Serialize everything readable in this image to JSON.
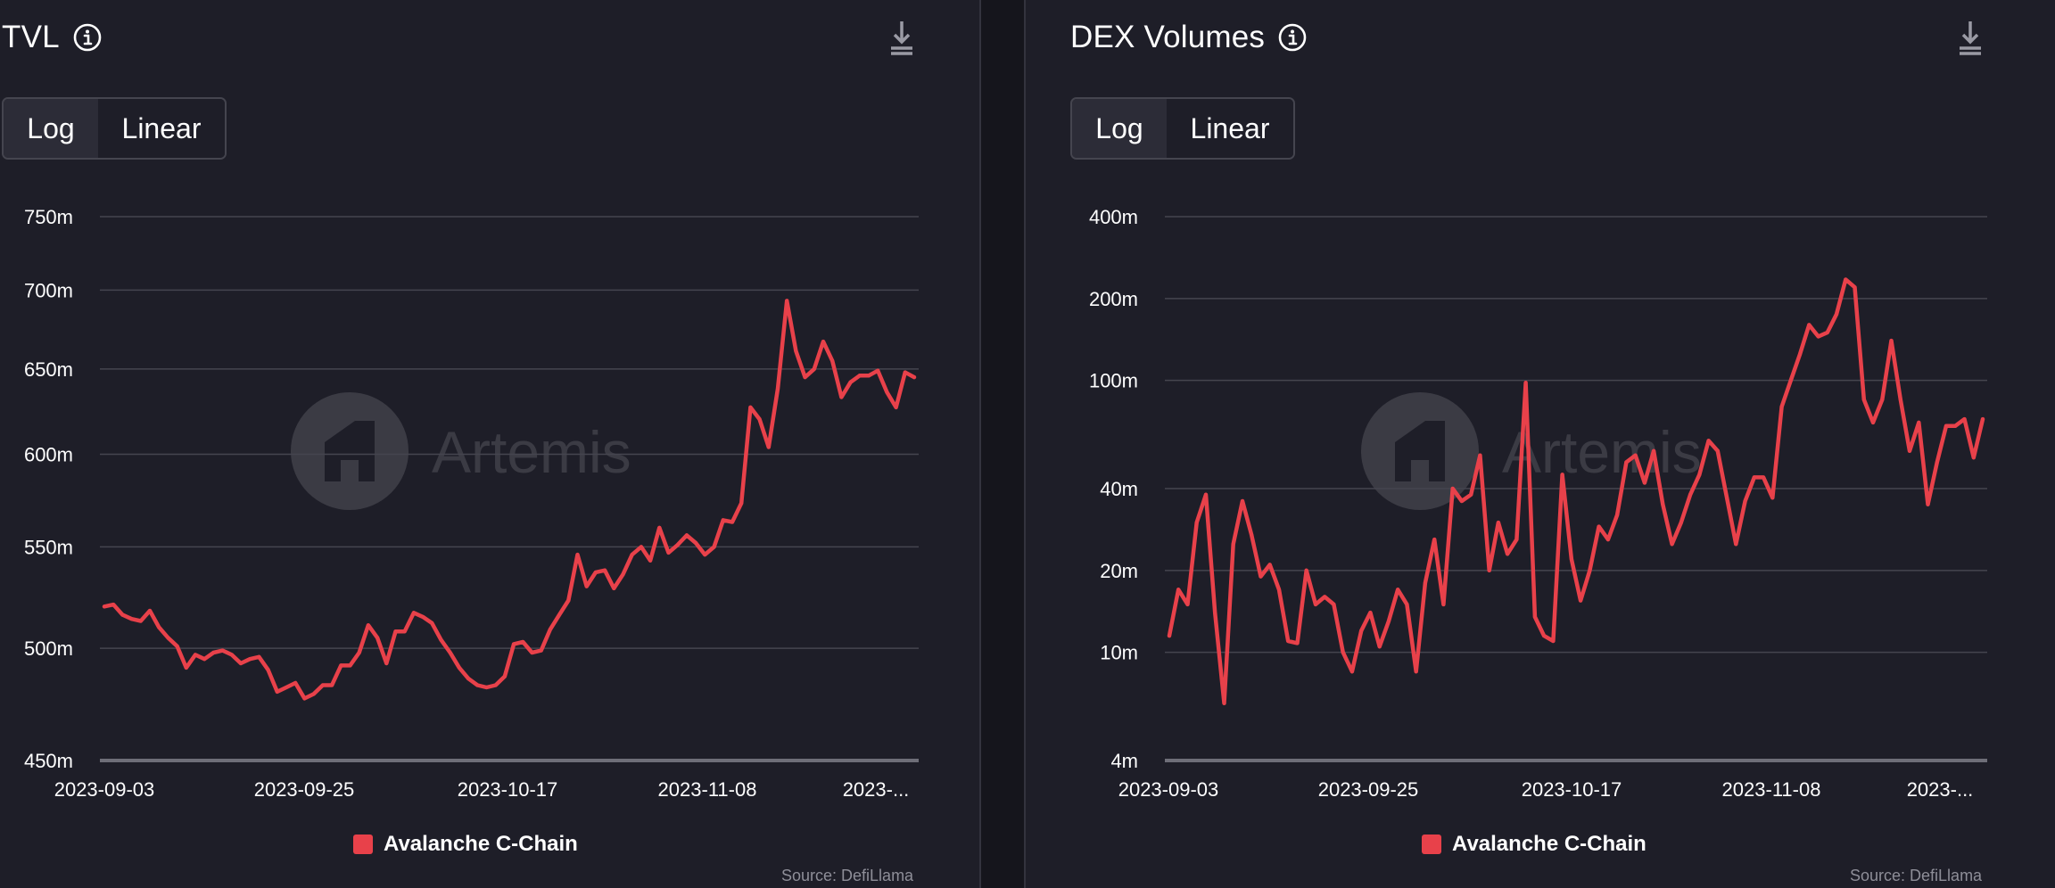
{
  "charts": [
    {
      "title": "TVL",
      "toggle": {
        "active": "Log",
        "inactive": "Linear"
      },
      "legend": "Avalanche C-Chain",
      "source": "Source: DefiLlama",
      "watermark": "Artemis",
      "icons": {
        "info": "info-icon",
        "download": "download-icon"
      }
    },
    {
      "title": "DEX Volumes",
      "toggle": {
        "active": "Log",
        "inactive": "Linear"
      },
      "legend": "Avalanche C-Chain",
      "source": "Source: DefiLlama",
      "watermark": "Artemis",
      "icons": {
        "info": "info-icon",
        "download": "download-icon"
      }
    }
  ],
  "colors": {
    "series": "#e8414a",
    "background": "#1e1e28",
    "grid": "#45454f",
    "text": "#ffffff",
    "muted": "#8e8e98"
  },
  "chart_data": [
    {
      "type": "line",
      "title": "TVL",
      "scale": "log",
      "ylim": [
        450000000,
        750000000
      ],
      "yticks": [
        450000000,
        500000000,
        550000000,
        600000000,
        650000000,
        700000000,
        750000000
      ],
      "ytick_labels": [
        "450m",
        "500m",
        "550m",
        "600m",
        "650m",
        "700m",
        "750m"
      ],
      "xtick_labels": [
        "2023-09-03",
        "2023-09-25",
        "2023-10-17",
        "2023-11-08",
        "2023-..."
      ],
      "x": [
        "2023-09-03",
        "2023-09-04",
        "2023-09-05",
        "2023-09-06",
        "2023-09-07",
        "2023-09-08",
        "2023-09-09",
        "2023-09-10",
        "2023-09-11",
        "2023-09-12",
        "2023-09-13",
        "2023-09-14",
        "2023-09-15",
        "2023-09-16",
        "2023-09-17",
        "2023-09-18",
        "2023-09-19",
        "2023-09-20",
        "2023-09-21",
        "2023-09-22",
        "2023-09-23",
        "2023-09-24",
        "2023-09-25",
        "2023-09-26",
        "2023-09-27",
        "2023-09-28",
        "2023-09-29",
        "2023-09-30",
        "2023-10-01",
        "2023-10-02",
        "2023-10-03",
        "2023-10-04",
        "2023-10-05",
        "2023-10-06",
        "2023-10-07",
        "2023-10-08",
        "2023-10-09",
        "2023-10-10",
        "2023-10-11",
        "2023-10-12",
        "2023-10-13",
        "2023-10-14",
        "2023-10-15",
        "2023-10-16",
        "2023-10-17",
        "2023-10-18",
        "2023-10-19",
        "2023-10-20",
        "2023-10-21",
        "2023-10-22",
        "2023-10-23",
        "2023-10-24",
        "2023-10-25",
        "2023-10-26",
        "2023-10-27",
        "2023-10-28",
        "2023-10-29",
        "2023-10-30",
        "2023-10-31",
        "2023-11-01",
        "2023-11-02",
        "2023-11-03",
        "2023-11-04",
        "2023-11-05",
        "2023-11-06",
        "2023-11-07",
        "2023-11-08",
        "2023-11-09",
        "2023-11-10",
        "2023-11-11",
        "2023-11-12",
        "2023-11-13",
        "2023-11-14",
        "2023-11-15",
        "2023-11-16",
        "2023-11-17",
        "2023-11-18",
        "2023-11-19",
        "2023-11-20",
        "2023-11-21",
        "2023-11-22",
        "2023-11-23",
        "2023-11-24",
        "2023-11-25",
        "2023-11-26",
        "2023-11-27",
        "2023-11-28",
        "2023-11-29",
        "2023-11-30",
        "2023-12-01"
      ],
      "series": [
        {
          "name": "Avalanche C-Chain",
          "values": [
            520,
            521,
            516,
            514,
            513,
            518,
            510,
            505,
            501,
            491,
            497,
            495,
            498,
            499,
            497,
            493,
            495,
            496,
            490,
            480,
            482,
            484,
            477,
            479,
            483,
            483,
            492,
            492,
            498,
            511,
            505,
            493,
            508,
            508,
            517,
            515,
            512,
            504,
            498,
            491,
            486,
            483,
            482,
            483,
            487,
            502,
            503,
            498,
            499,
            509,
            516,
            523,
            546,
            530,
            537,
            538,
            529,
            536,
            546,
            550,
            543,
            560,
            547,
            551,
            556,
            552,
            546,
            550,
            564,
            563,
            573,
            627,
            620,
            604,
            638,
            693,
            661,
            645,
            650,
            667,
            655,
            633,
            642,
            646,
            646,
            649,
            636,
            627,
            648,
            645
          ]
        }
      ]
    },
    {
      "type": "line",
      "title": "DEX Volumes",
      "scale": "log",
      "ylim": [
        4000000,
        400000000
      ],
      "yticks": [
        4000000,
        10000000,
        20000000,
        40000000,
        100000000,
        200000000,
        400000000
      ],
      "ytick_labels": [
        "4m",
        "10m",
        "20m",
        "40m",
        "100m",
        "200m",
        "400m"
      ],
      "xtick_labels": [
        "2023-09-03",
        "2023-09-25",
        "2023-10-17",
        "2023-11-08",
        "2023-..."
      ],
      "x": [
        "2023-09-03",
        "2023-09-04",
        "2023-09-05",
        "2023-09-06",
        "2023-09-07",
        "2023-09-08",
        "2023-09-09",
        "2023-09-10",
        "2023-09-11",
        "2023-09-12",
        "2023-09-13",
        "2023-09-14",
        "2023-09-15",
        "2023-09-16",
        "2023-09-17",
        "2023-09-18",
        "2023-09-19",
        "2023-09-20",
        "2023-09-21",
        "2023-09-22",
        "2023-09-23",
        "2023-09-24",
        "2023-09-25",
        "2023-09-26",
        "2023-09-27",
        "2023-09-28",
        "2023-09-29",
        "2023-09-30",
        "2023-10-01",
        "2023-10-02",
        "2023-10-03",
        "2023-10-04",
        "2023-10-05",
        "2023-10-06",
        "2023-10-07",
        "2023-10-08",
        "2023-10-09",
        "2023-10-10",
        "2023-10-11",
        "2023-10-12",
        "2023-10-13",
        "2023-10-14",
        "2023-10-15",
        "2023-10-16",
        "2023-10-17",
        "2023-10-18",
        "2023-10-19",
        "2023-10-20",
        "2023-10-21",
        "2023-10-22",
        "2023-10-23",
        "2023-10-24",
        "2023-10-25",
        "2023-10-26",
        "2023-10-27",
        "2023-10-28",
        "2023-10-29",
        "2023-10-30",
        "2023-10-31",
        "2023-11-01",
        "2023-11-02",
        "2023-11-03",
        "2023-11-04",
        "2023-11-05",
        "2023-11-06",
        "2023-11-07",
        "2023-11-08",
        "2023-11-09",
        "2023-11-10",
        "2023-11-11",
        "2023-11-12",
        "2023-11-13",
        "2023-11-14",
        "2023-11-15",
        "2023-11-16",
        "2023-11-17",
        "2023-11-18",
        "2023-11-19",
        "2023-11-20",
        "2023-11-21",
        "2023-11-22",
        "2023-11-23",
        "2023-11-24",
        "2023-11-25",
        "2023-11-26",
        "2023-11-27",
        "2023-11-28",
        "2023-11-29",
        "2023-11-30",
        "2023-12-01"
      ],
      "series": [
        {
          "name": "Avalanche C-Chain",
          "values": [
            11.5,
            17,
            15,
            30,
            38,
            14,
            6.5,
            25,
            36,
            27,
            19,
            21,
            17,
            11,
            10.8,
            20,
            15,
            16,
            15,
            10,
            8.5,
            12,
            14,
            10.5,
            13,
            17,
            15,
            8.5,
            18,
            26,
            15,
            40,
            36,
            38,
            53,
            20,
            30,
            23,
            26,
            98,
            13.5,
            11.5,
            11,
            45,
            22,
            15.5,
            20,
            29,
            26,
            32,
            50,
            53,
            42,
            55,
            35,
            25,
            30,
            38,
            45,
            60,
            55,
            37,
            25,
            36,
            44,
            44,
            37,
            80,
            100,
            125,
            160,
            145,
            150,
            175,
            235,
            220,
            85,
            70,
            85,
            140,
            85,
            55,
            70,
            35,
            50,
            68,
            68,
            72,
            52,
            72
          ]
        }
      ]
    }
  ]
}
